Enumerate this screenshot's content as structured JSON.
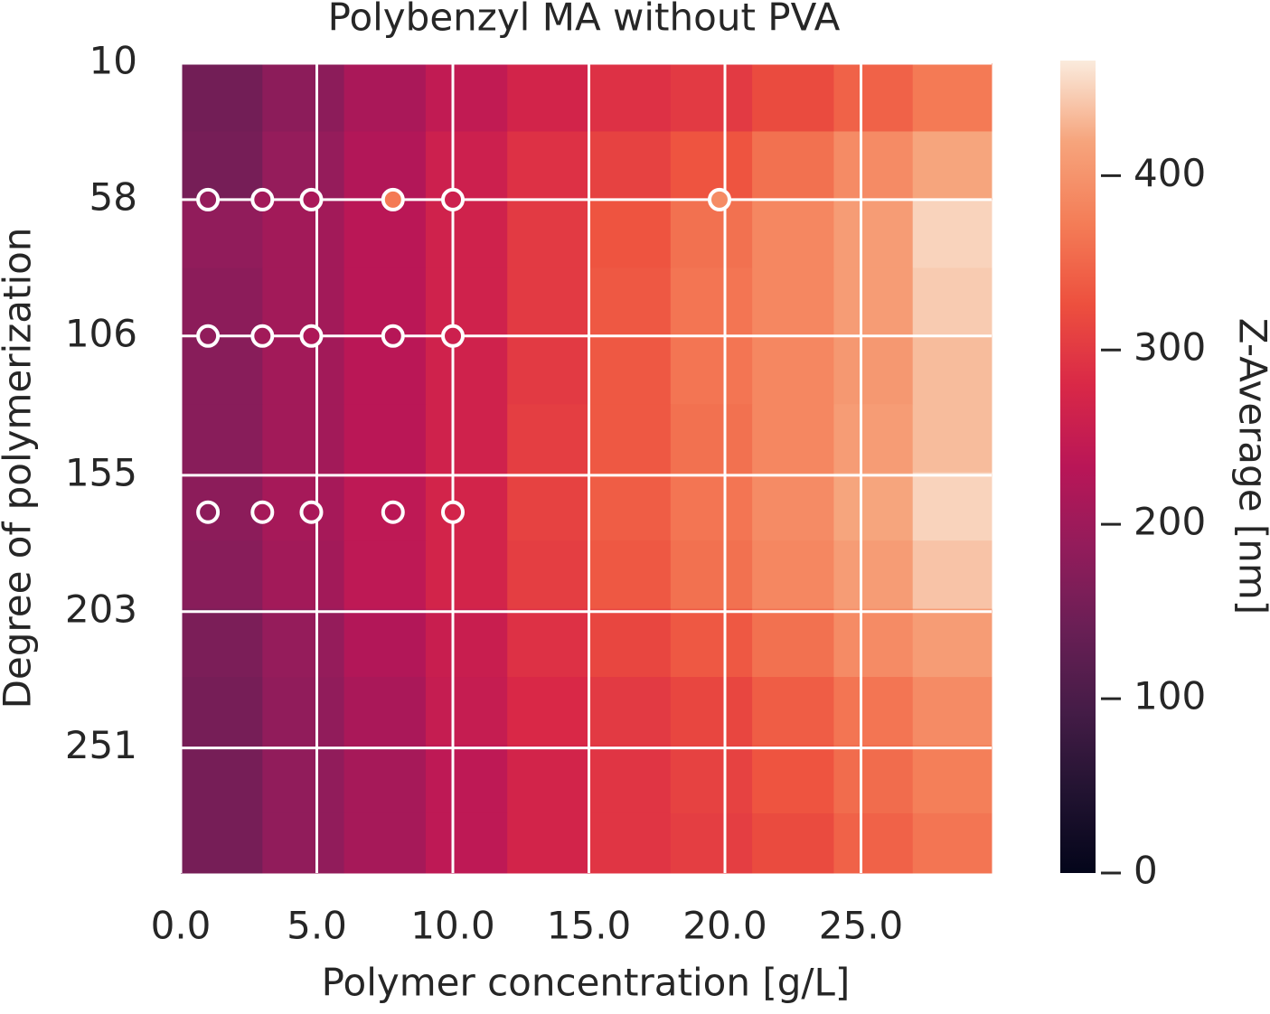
{
  "chart_data": {
    "type": "heatmap",
    "title": "Polybenzyl MA without PVA",
    "x_label": "Polymer concentration [g/L]",
    "y_label": "Degree of polymerization",
    "colorbar_label": "Z-Average [nm]",
    "x": [
      1.5,
      4.5,
      7.5,
      10.5,
      13.5,
      16.5,
      19.5,
      22.5,
      25.5,
      28.3
    ],
    "y": [
      22,
      46,
      70,
      94,
      118,
      142,
      166,
      190,
      214,
      238,
      262,
      286
    ],
    "z": [
      [
        150,
        180,
        215,
        245,
        270,
        290,
        300,
        320,
        345,
        370
      ],
      [
        155,
        190,
        225,
        260,
        290,
        310,
        330,
        360,
        390,
        420
      ],
      [
        185,
        205,
        235,
        265,
        300,
        330,
        360,
        385,
        410,
        450
      ],
      [
        180,
        205,
        235,
        265,
        300,
        335,
        365,
        385,
        410,
        445
      ],
      [
        175,
        205,
        235,
        265,
        300,
        335,
        365,
        385,
        405,
        435
      ],
      [
        175,
        205,
        235,
        265,
        305,
        335,
        360,
        385,
        410,
        435
      ],
      [
        180,
        210,
        240,
        270,
        310,
        340,
        365,
        390,
        420,
        450
      ],
      [
        175,
        205,
        240,
        270,
        305,
        335,
        360,
        385,
        410,
        440
      ],
      [
        160,
        190,
        225,
        255,
        290,
        315,
        335,
        360,
        390,
        410
      ],
      [
        155,
        185,
        215,
        250,
        280,
        300,
        315,
        340,
        365,
        390
      ],
      [
        155,
        185,
        210,
        240,
        270,
        295,
        310,
        330,
        355,
        375
      ],
      [
        155,
        185,
        210,
        240,
        270,
        295,
        305,
        320,
        345,
        365
      ]
    ],
    "xlim": [
      0,
      29.8
    ],
    "ylim": [
      10,
      295
    ],
    "xticks": [
      {
        "value": 0,
        "label": "0.0"
      },
      {
        "value": 5,
        "label": "5.0"
      },
      {
        "value": 10,
        "label": "10.0"
      },
      {
        "value": 15,
        "label": "15.0"
      },
      {
        "value": 20,
        "label": "20.0"
      },
      {
        "value": 25,
        "label": "25.0"
      }
    ],
    "yticks": [
      10,
      58,
      106,
      155,
      203,
      251
    ],
    "zlim": [
      0,
      466
    ],
    "zticks": [
      0,
      100,
      200,
      300,
      400
    ],
    "colormap": [
      "#03051A",
      "#221331",
      "#451C47",
      "#691F55",
      "#921C5B",
      "#B91657",
      "#D92847",
      "#ED503E",
      "#F47D57",
      "#F6A47C",
      "#FAEBDD"
    ],
    "grid": true,
    "scatter": {
      "x": [
        1,
        3,
        4.8,
        7.8,
        10,
        19.8,
        1,
        3,
        4.8,
        7.8,
        10,
        1,
        3,
        4.8,
        7.8,
        10
      ],
      "y": [
        58,
        58,
        58,
        58,
        58,
        58,
        106,
        106,
        106,
        106,
        106,
        168,
        168,
        168,
        168,
        168
      ],
      "values": [
        190,
        205,
        215,
        370,
        260,
        390,
        185,
        205,
        220,
        230,
        260,
        180,
        210,
        215,
        235,
        270
      ]
    }
  }
}
